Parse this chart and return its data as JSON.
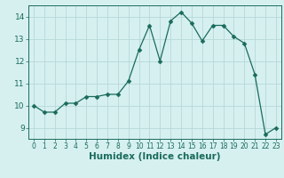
{
  "x": [
    0,
    1,
    2,
    3,
    4,
    5,
    6,
    7,
    8,
    9,
    10,
    11,
    12,
    13,
    14,
    15,
    16,
    17,
    18,
    19,
    20,
    21,
    22,
    23
  ],
  "y": [
    10.0,
    9.7,
    9.7,
    10.1,
    10.1,
    10.4,
    10.4,
    10.5,
    10.5,
    11.1,
    12.5,
    13.6,
    12.0,
    13.8,
    14.2,
    13.7,
    12.9,
    13.6,
    13.6,
    13.1,
    12.8,
    11.4,
    8.7,
    9.0
  ],
  "line_color": "#1a6b5a",
  "marker": "D",
  "marker_size": 2.5,
  "bg_color": "#d6f0f0",
  "grid_color": "#b8d8d8",
  "xlabel": "Humidex (Indice chaleur)",
  "xlim": [
    -0.5,
    23.5
  ],
  "ylim": [
    8.5,
    14.5
  ],
  "yticks": [
    9,
    10,
    11,
    12,
    13,
    14
  ],
  "xticks": [
    0,
    1,
    2,
    3,
    4,
    5,
    6,
    7,
    8,
    9,
    10,
    11,
    12,
    13,
    14,
    15,
    16,
    17,
    18,
    19,
    20,
    21,
    22,
    23
  ],
  "tick_color": "#1a6b5a",
  "spine_color": "#1a6b5a",
  "ytick_fontsize": 6.5,
  "xtick_fontsize": 5.5,
  "xlabel_fontsize": 7.5
}
